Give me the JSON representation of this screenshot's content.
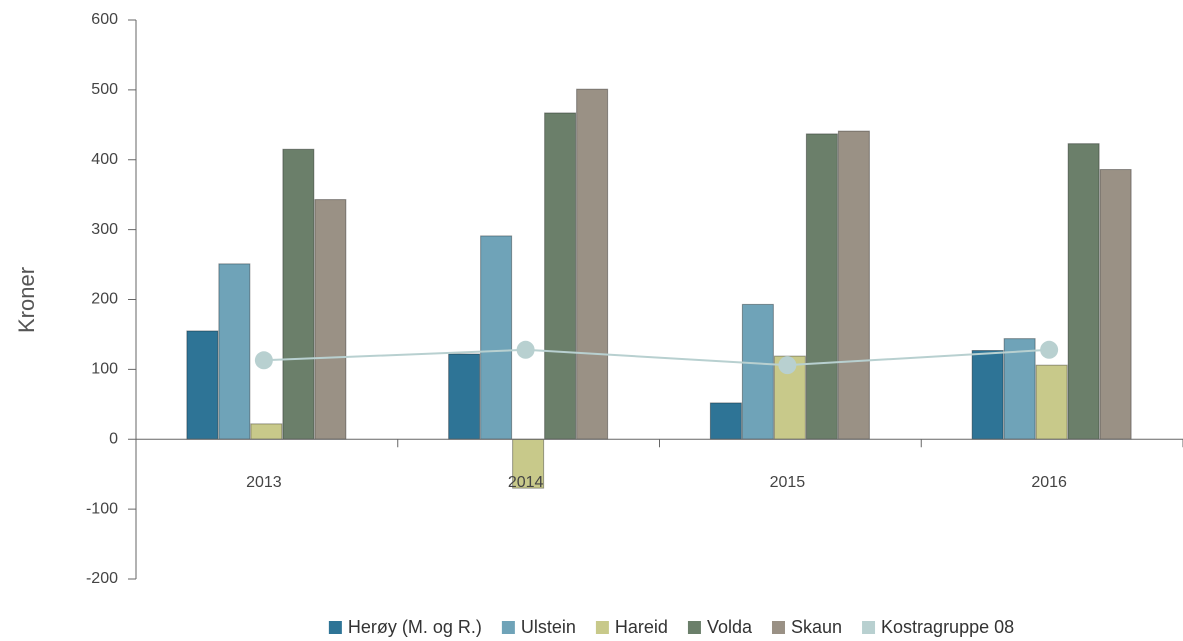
{
  "chart_data": {
    "type": "bar",
    "y_label": "Kroner",
    "categories": [
      "2013",
      "2014",
      "2015",
      "2016"
    ],
    "series": [
      {
        "name": "Herøy (M. og R.)",
        "color": "#2e7496",
        "values": [
          155,
          122,
          52,
          127
        ]
      },
      {
        "name": "Ulstein",
        "color": "#6fa3b8",
        "values": [
          251,
          291,
          193,
          144
        ]
      },
      {
        "name": "Hareid",
        "color": "#c8c98a",
        "values": [
          22,
          -70,
          119,
          106
        ]
      },
      {
        "name": "Volda",
        "color": "#6b7f6a",
        "values": [
          415,
          467,
          437,
          423
        ]
      },
      {
        "name": "Skaun",
        "color": "#9a9185",
        "values": [
          343,
          501,
          441,
          386
        ]
      },
      {
        "name": "Kostragruppe 08",
        "color": "#b8d0d0",
        "type": "line",
        "values": [
          113,
          128,
          106,
          128
        ]
      }
    ],
    "ylim": [
      -200,
      600
    ],
    "yticks": [
      -200,
      -100,
      0,
      100,
      200,
      300,
      400,
      500,
      600
    ],
    "legend": "bottom"
  }
}
